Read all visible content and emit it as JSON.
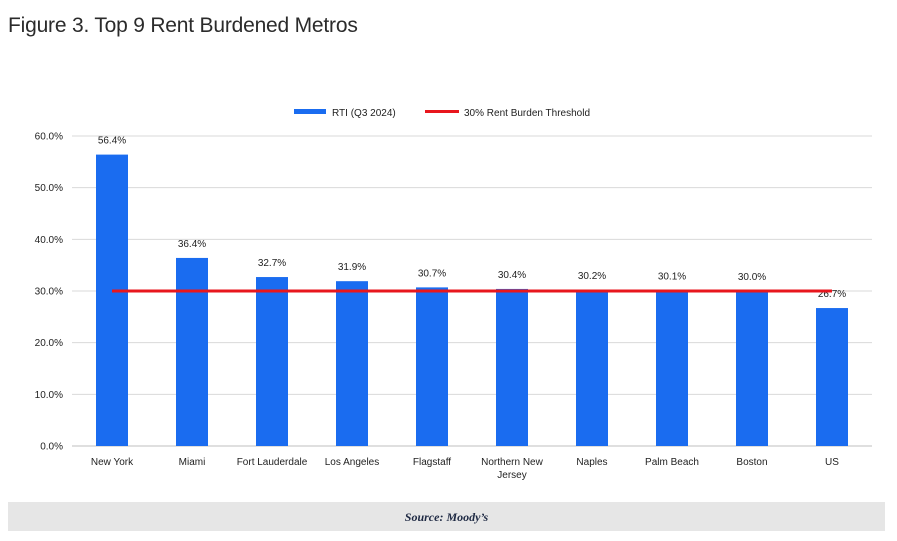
{
  "figure": {
    "title": "Figure 3. Top 9 Rent Burdened Metros",
    "source": "Source: Moody’s"
  },
  "colors": {
    "bar": "#1a6cf0",
    "threshold": "#e8161d",
    "grid": "#d9d9d9"
  },
  "chart_data": {
    "type": "bar",
    "categories": [
      "New York",
      "Miami",
      "Fort Lauderdale",
      "Los Angeles",
      "Flagstaff",
      "Northern New Jersey",
      "Naples",
      "Palm Beach",
      "Boston",
      "US"
    ],
    "category_lines": [
      [
        "New York"
      ],
      [
        "Miami"
      ],
      [
        "Fort Lauderdale"
      ],
      [
        "Los Angeles"
      ],
      [
        "Flagstaff"
      ],
      [
        "Northern New",
        "Jersey"
      ],
      [
        "Naples"
      ],
      [
        "Palm Beach"
      ],
      [
        "Boston"
      ],
      [
        "US"
      ]
    ],
    "series": [
      {
        "name": "RTI (Q3 2024)",
        "values": [
          56.4,
          36.4,
          32.7,
          31.9,
          30.7,
          30.4,
          30.2,
          30.1,
          30.0,
          26.7
        ],
        "labels": [
          "56.4%",
          "36.4%",
          "32.7%",
          "31.9%",
          "30.7%",
          "30.4%",
          "30.2%",
          "30.1%",
          "30.0%",
          "26.7%"
        ]
      }
    ],
    "threshold": {
      "name": "30% Rent Burden Threshold",
      "value": 30.0
    },
    "ylim": [
      0,
      60
    ],
    "yticks": [
      0,
      10,
      20,
      30,
      40,
      50,
      60
    ],
    "ytick_labels": [
      "0.0%",
      "10.0%",
      "20.0%",
      "30.0%",
      "40.0%",
      "50.0%",
      "60.0%"
    ],
    "grid": true,
    "legend_position": "top-center"
  }
}
